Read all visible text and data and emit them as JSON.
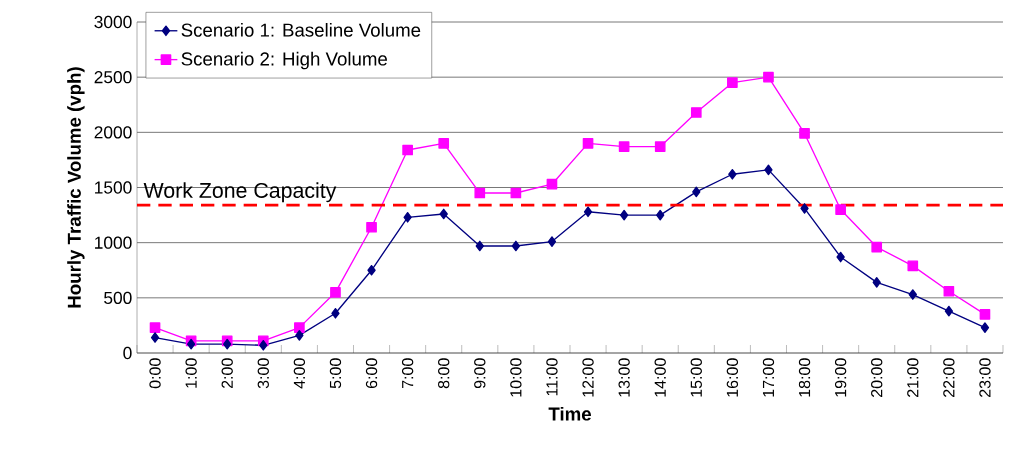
{
  "chart_data": {
    "type": "line",
    "xlabel": "Time",
    "ylabel": "Hourly Traffic Volume (vph)",
    "categories": [
      "0:00",
      "1:00",
      "2:00",
      "3:00",
      "4:00",
      "5:00",
      "6:00",
      "7:00",
      "8:00",
      "9:00",
      "10:00",
      "11:00",
      "12:00",
      "13:00",
      "14:00",
      "15:00",
      "16:00",
      "17:00",
      "18:00",
      "19:00",
      "20:00",
      "21:00",
      "22:00",
      "23:00"
    ],
    "series": [
      {
        "name": "Scenario 1: Baseline Volume",
        "color": "#000080",
        "marker": "diamond",
        "values": [
          140,
          80,
          80,
          70,
          160,
          360,
          750,
          1230,
          1260,
          970,
          970,
          1010,
          1280,
          1250,
          1250,
          1460,
          1620,
          1660,
          1310,
          870,
          640,
          530,
          380,
          230
        ]
      },
      {
        "name": "Scenario 2: High Volume",
        "color": "#ff00ff",
        "marker": "square",
        "values": [
          230,
          110,
          110,
          110,
          230,
          550,
          1140,
          1840,
          1900,
          1450,
          1450,
          1530,
          1900,
          1870,
          1870,
          2180,
          2450,
          2500,
          1990,
          1300,
          960,
          790,
          560,
          350
        ]
      }
    ],
    "ylim": [
      0,
      3000
    ],
    "yticks": [
      0,
      500,
      1000,
      1500,
      2000,
      2500,
      3000
    ],
    "grid": "y",
    "legend": "top left",
    "ref_lines": [
      {
        "axis": "y",
        "value": 1340,
        "label": "Work Zone Capacity",
        "color": "#ff0000",
        "line_style": "dashed"
      }
    ]
  }
}
